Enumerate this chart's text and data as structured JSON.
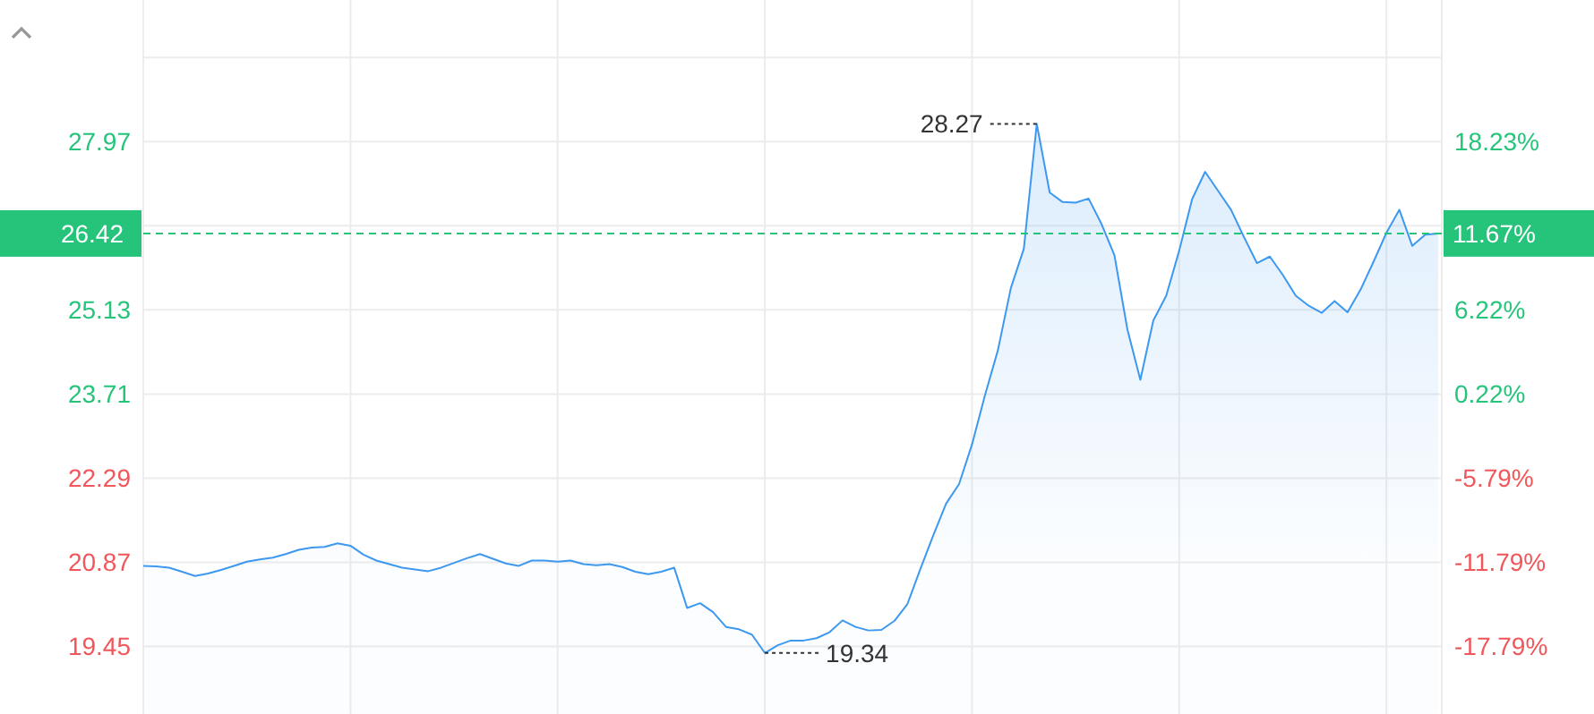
{
  "chart_data": {
    "type": "area",
    "categories": [
      null,
      null,
      null,
      null,
      null,
      null,
      null,
      null,
      null,
      null,
      null,
      null,
      null,
      null,
      null,
      null,
      null,
      null,
      null,
      null,
      null,
      null,
      null,
      null,
      null,
      null,
      null,
      null,
      null,
      null,
      null,
      null,
      null,
      null,
      null,
      null,
      null,
      null,
      null,
      null,
      null,
      null,
      null,
      null,
      null,
      null,
      null,
      null,
      null,
      null,
      null,
      null,
      null,
      null,
      null,
      null,
      null,
      null,
      null,
      null,
      null,
      null,
      null,
      null,
      null,
      null,
      null,
      null,
      null,
      null,
      null,
      null,
      null,
      null,
      null,
      null,
      null,
      null,
      null,
      null,
      null,
      null,
      null,
      null,
      null,
      null,
      null,
      null,
      null,
      null,
      null,
      null,
      null,
      null,
      null,
      null,
      null,
      null,
      null,
      null,
      null
    ],
    "series": [
      {
        "color": "#3d98f0",
        "values": [
          20.81,
          20.8,
          20.78,
          20.71,
          20.64,
          20.68,
          20.74,
          20.81,
          20.88,
          20.92,
          20.95,
          21.01,
          21.08,
          21.12,
          21.13,
          21.19,
          21.15,
          21.0,
          20.9,
          20.84,
          20.78,
          20.75,
          20.72,
          20.78,
          20.86,
          20.94,
          21.01,
          20.93,
          20.85,
          20.81,
          20.9,
          20.9,
          20.88,
          20.9,
          20.84,
          20.82,
          20.84,
          20.79,
          20.71,
          20.67,
          20.71,
          20.78,
          20.1,
          20.18,
          20.03,
          19.78,
          19.74,
          19.65,
          19.34,
          19.47,
          19.55,
          19.55,
          19.59,
          19.69,
          19.89,
          19.78,
          19.72,
          19.73,
          19.88,
          20.16,
          20.75,
          21.32,
          21.86,
          22.19,
          22.86,
          23.69,
          24.45,
          25.5,
          26.16,
          28.27,
          27.11,
          26.95,
          26.94,
          27.01,
          26.58,
          26.05,
          24.8,
          23.95,
          24.95,
          25.37,
          26.13,
          27.0,
          27.46,
          27.14,
          26.82,
          26.36,
          25.92,
          26.03,
          25.72,
          25.37,
          25.2,
          25.08,
          25.28,
          25.09,
          25.47,
          25.94,
          26.43,
          26.82,
          26.21,
          26.4,
          26.42
        ]
      }
    ],
    "ylim": [
      18.31,
      30.36
    ],
    "yticks": [
      {
        "value": 29.39,
        "label": null
      },
      27.97,
      {
        "value": 26.55,
        "label": null
      },
      25.13,
      23.71,
      22.29,
      20.87,
      19.45
    ],
    "y2lim": [
      -22.61,
      28.32
    ],
    "y2ticks": [
      {
        "value": 18.23,
        "label": "18.23%"
      },
      {
        "value": 11.67,
        "label": "11.67%"
      },
      {
        "value": 6.22,
        "label": "6.22%"
      },
      {
        "value": 0.22,
        "label": "0.22%"
      },
      {
        "value": -5.79,
        "label": "-5.79%"
      },
      {
        "value": -11.79,
        "label": "-11.79%"
      },
      {
        "value": -17.79,
        "label": "-17.79%"
      }
    ],
    "ref_lines": [
      {
        "axis": "y",
        "value": 26.42,
        "label": "26.42",
        "color": "#26c47b",
        "line_style": "dashed"
      }
    ],
    "annotations": [
      "28.27",
      "19.34"
    ],
    "grid": true
  }
}
